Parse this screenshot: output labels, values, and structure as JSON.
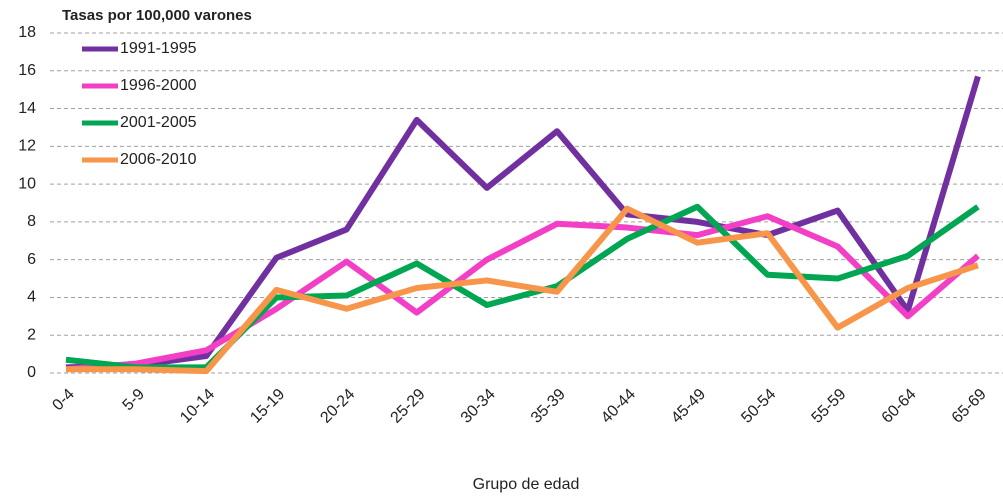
{
  "chart_data": {
    "type": "line",
    "title": "Tasas por 100,000 varones",
    "x_label": "Grupo de edad",
    "categories": [
      "0-4",
      "5-9",
      "10-14",
      "15-19",
      "20-24",
      "25-29",
      "30-34",
      "35-39",
      "40-44",
      "45-49",
      "50-54",
      "55-59",
      "60-64",
      "65-69"
    ],
    "series": [
      {
        "name": "1991-1995",
        "color": "#7030a0",
        "values": [
          0.3,
          0.4,
          0.9,
          6.1,
          7.6,
          13.4,
          9.8,
          12.8,
          8.4,
          8.0,
          7.3,
          8.6,
          3.3,
          15.7
        ]
      },
      {
        "name": "1996-2000",
        "color": "#f23fc6",
        "values": [
          0.2,
          0.5,
          1.2,
          3.4,
          5.9,
          3.2,
          6.0,
          7.9,
          7.7,
          7.3,
          8.3,
          6.7,
          3.0,
          6.2
        ]
      },
      {
        "name": "2001-2005",
        "color": "#00a651",
        "values": [
          0.7,
          0.3,
          0.3,
          4.0,
          4.1,
          5.8,
          3.6,
          4.6,
          7.1,
          8.8,
          5.2,
          5.0,
          6.2,
          8.8
        ]
      },
      {
        "name": "2006-2010",
        "color": "#f7964a",
        "values": [
          0.2,
          0.2,
          0.1,
          4.4,
          3.4,
          4.5,
          4.9,
          4.3,
          8.7,
          6.9,
          7.4,
          2.4,
          4.5,
          5.7
        ]
      }
    ],
    "ylim": [
      0,
      18
    ],
    "yticks": [
      0,
      2,
      4,
      6,
      8,
      10,
      12,
      14,
      16,
      18
    ],
    "grid": true,
    "legend": "upper left"
  }
}
